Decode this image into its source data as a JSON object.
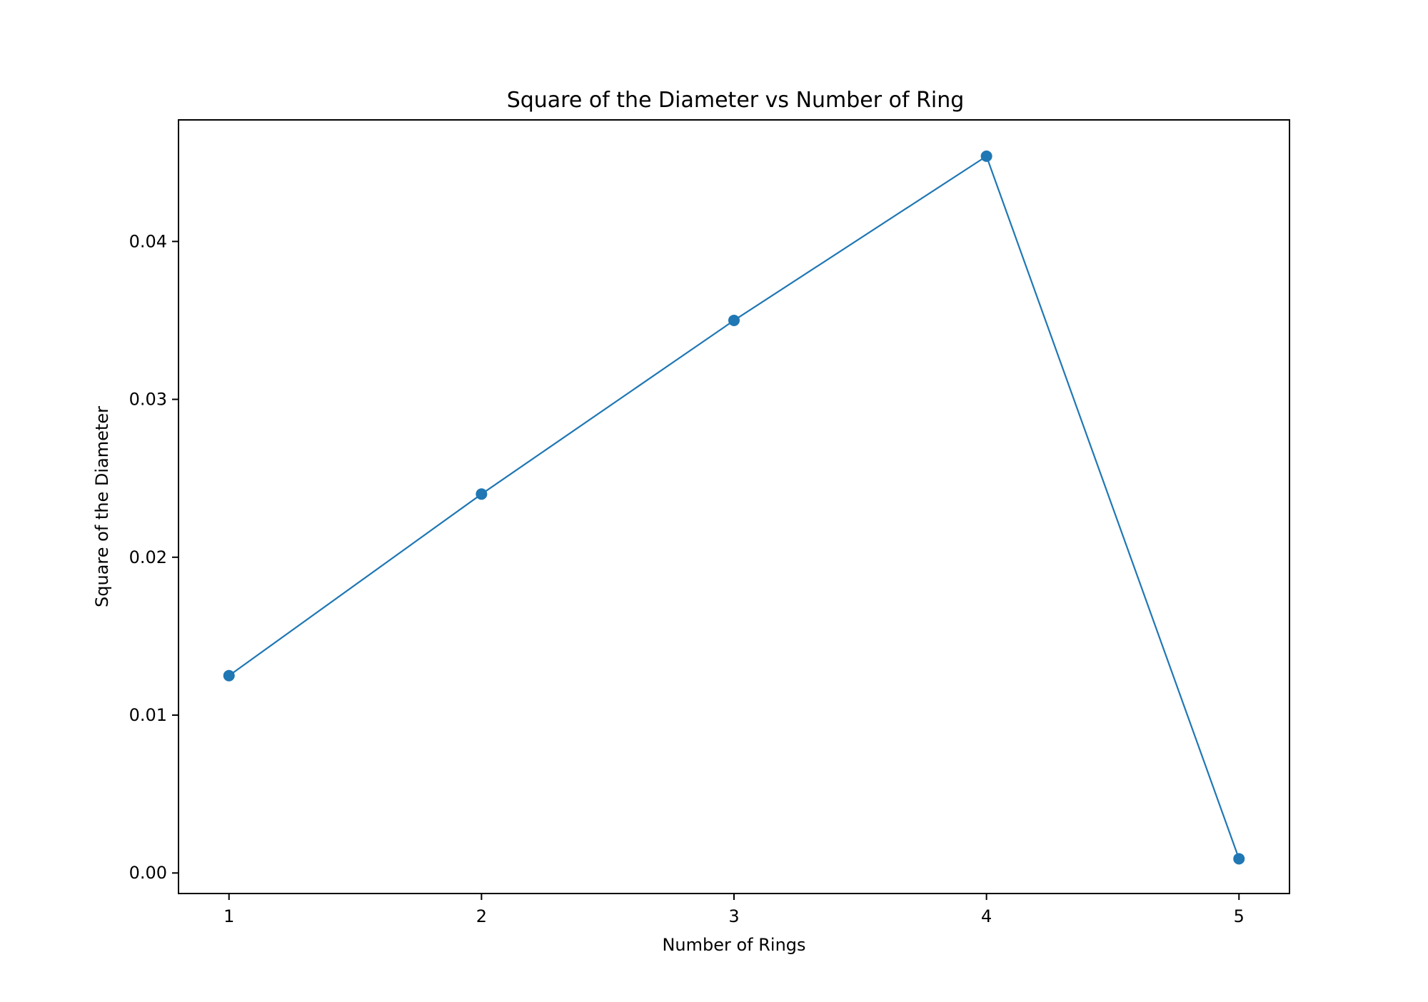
{
  "chart_data": {
    "type": "line",
    "title": "Square of the Diameter vs Number of Ring",
    "xlabel": "Number of Rings",
    "ylabel": "Square of the Diameter",
    "x": [
      1,
      2,
      3,
      4,
      5
    ],
    "series": [
      {
        "values": [
          0.0125,
          0.024,
          0.035,
          0.0454,
          0.0009
        ],
        "color": "#1f77b4",
        "marker": "circle"
      }
    ],
    "xlim": [
      0.8,
      5.2
    ],
    "ylim": [
      -0.0013,
      0.0477
    ],
    "x_ticks": [
      1,
      2,
      3,
      4,
      5
    ],
    "x_tick_labels": [
      "1",
      "2",
      "3",
      "4",
      "5"
    ],
    "y_ticks": [
      0.0,
      0.01,
      0.02,
      0.03,
      0.04
    ],
    "y_tick_labels": [
      "0.00",
      "0.01",
      "0.02",
      "0.03",
      "0.04"
    ],
    "grid": false,
    "legend": "none"
  }
}
